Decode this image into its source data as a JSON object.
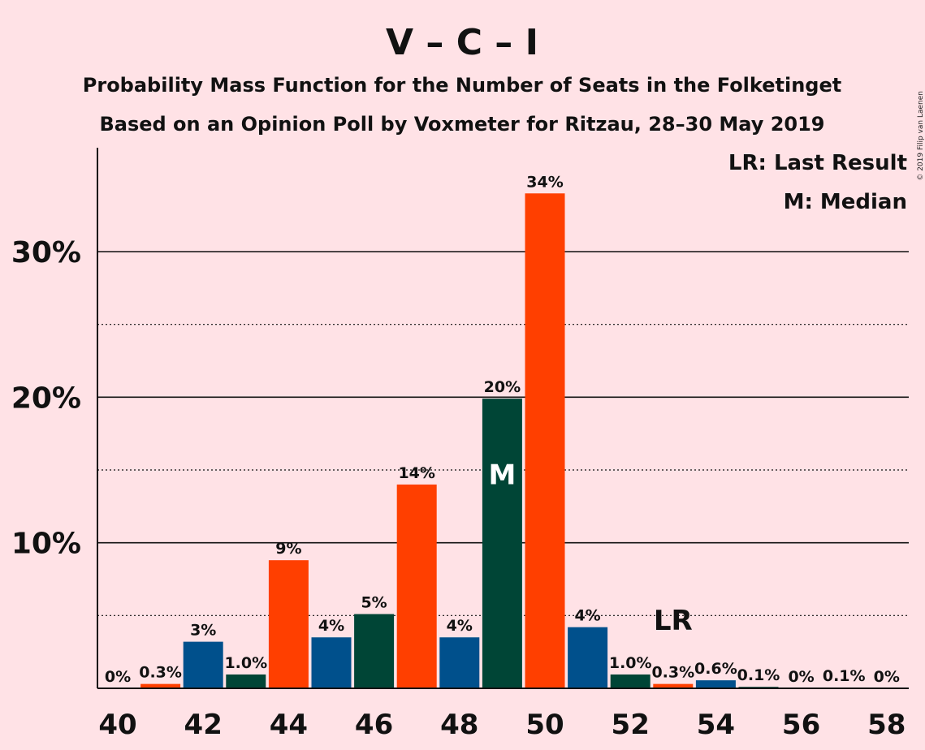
{
  "chart_data": {
    "type": "bar",
    "title": "V – C – I",
    "subtitle_line1": "Probability Mass Function for the Number of Seats in the Folketinget",
    "subtitle_line2": "Based on an Opinion Poll by Voxmeter for Ritzau, 28–30 May 2019",
    "copyright": "© 2019 Filip van Laenen",
    "legend": {
      "lr": "LR: Last Result",
      "m": "M: Median",
      "placement": "top-right"
    },
    "xlabel": "",
    "ylabel": "",
    "ylim": [
      0,
      37
    ],
    "x_ticks": [
      40,
      42,
      44,
      46,
      48,
      50,
      52,
      54,
      56,
      58
    ],
    "y_ticks": [
      {
        "value": 10,
        "label": "10%"
      },
      {
        "value": 20,
        "label": "20%"
      },
      {
        "value": 30,
        "label": "30%"
      }
    ],
    "dotted_gridlines": [
      5,
      15,
      25
    ],
    "grid": true,
    "median_marker": {
      "seats": 49,
      "label": "M"
    },
    "last_result_marker": {
      "seats": 53,
      "label": "LR"
    },
    "colors": {
      "red": "#FF3F00",
      "blue": "#00508C",
      "green": "#004536",
      "background": "#FFE2E6"
    },
    "bars": [
      {
        "seats": 40,
        "value": 0,
        "label": "0%",
        "color": "red"
      },
      {
        "seats": 41,
        "value": 0.3,
        "label": "0.3%",
        "color": "red"
      },
      {
        "seats": 42,
        "value": 3.2,
        "label": "3%",
        "color": "blue"
      },
      {
        "seats": 43,
        "value": 0.95,
        "label": "1.0%",
        "color": "green"
      },
      {
        "seats": 44,
        "value": 8.8,
        "label": "9%",
        "color": "red"
      },
      {
        "seats": 45,
        "value": 3.5,
        "label": "4%",
        "color": "blue"
      },
      {
        "seats": 46,
        "value": 5.1,
        "label": "5%",
        "color": "green"
      },
      {
        "seats": 47,
        "value": 14.0,
        "label": "14%",
        "color": "red"
      },
      {
        "seats": 48,
        "value": 3.5,
        "label": "4%",
        "color": "blue"
      },
      {
        "seats": 49,
        "value": 19.9,
        "label": "20%",
        "color": "green"
      },
      {
        "seats": 50,
        "value": 34.0,
        "label": "34%",
        "color": "red"
      },
      {
        "seats": 51,
        "value": 4.2,
        "label": "4%",
        "color": "blue"
      },
      {
        "seats": 52,
        "value": 0.95,
        "label": "1.0%",
        "color": "green"
      },
      {
        "seats": 53,
        "value": 0.3,
        "label": "0.3%",
        "color": "red"
      },
      {
        "seats": 54,
        "value": 0.55,
        "label": "0.6%",
        "color": "blue"
      },
      {
        "seats": 55,
        "value": 0.1,
        "label": "0.1%",
        "color": "green"
      },
      {
        "seats": 56,
        "value": 0,
        "label": "0%",
        "color": "red"
      },
      {
        "seats": 57,
        "value": 0.05,
        "label": "0.1%",
        "color": "blue"
      },
      {
        "seats": 58,
        "value": 0,
        "label": "0%",
        "color": "green"
      }
    ]
  }
}
